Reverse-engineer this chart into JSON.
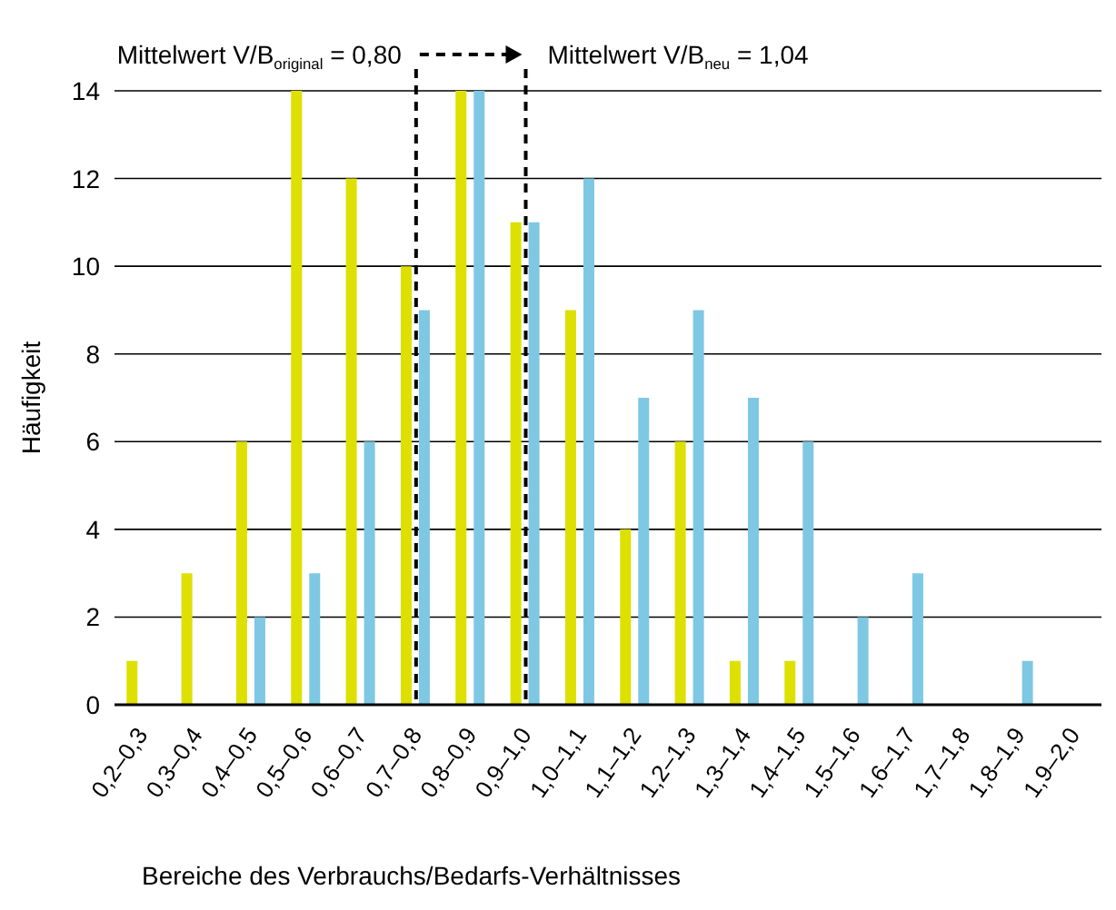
{
  "chart_data": {
    "type": "bar",
    "xlabel": "Bereiche des Verbrauchs/Bedarfs-Verhältnisses",
    "ylabel": "Häufigkeit",
    "categories": [
      "0,2–0,3",
      "0,3–0,4",
      "0,4–0,5",
      "0,5–0,6",
      "0,6–0,7",
      "0,7–0,8",
      "0,8–0,9",
      "0,9–1,0",
      "1,0–1,1",
      "1,1–1,2",
      "1,2–1,3",
      "1,3–1,4",
      "1,4–1,5",
      "1,5–1,6",
      "1,6–1,7",
      "1,7–1,8",
      "1,8–1,9",
      "1,9–2,0"
    ],
    "series": [
      {
        "color": "#dde000",
        "values": [
          1,
          3,
          6,
          14,
          12,
          10,
          14,
          11,
          9,
          4,
          6,
          1,
          1,
          0,
          0,
          0,
          0,
          0
        ]
      },
      {
        "color": "#7ec8e3",
        "values": [
          0,
          0,
          2,
          3,
          6,
          9,
          14,
          11,
          12,
          7,
          9,
          7,
          6,
          2,
          3,
          0,
          1,
          0
        ]
      }
    ],
    "ylim": [
      0,
      14
    ],
    "yticks": [
      0,
      2,
      4,
      6,
      8,
      10,
      12,
      14
    ],
    "grid": "y",
    "ref_lines": [
      {
        "axis": "x",
        "value": "0,7–0,8",
        "label": "Mittelwert V/B$_{original}$ = 0,80",
        "line_style": "dashed",
        "color": "#000000"
      },
      {
        "axis": "x",
        "value": "0,9–1,0",
        "label": "Mittelwert V/B$_{neu}$ = 1,04",
        "line_style": "dashed",
        "color": "#000000"
      }
    ]
  }
}
